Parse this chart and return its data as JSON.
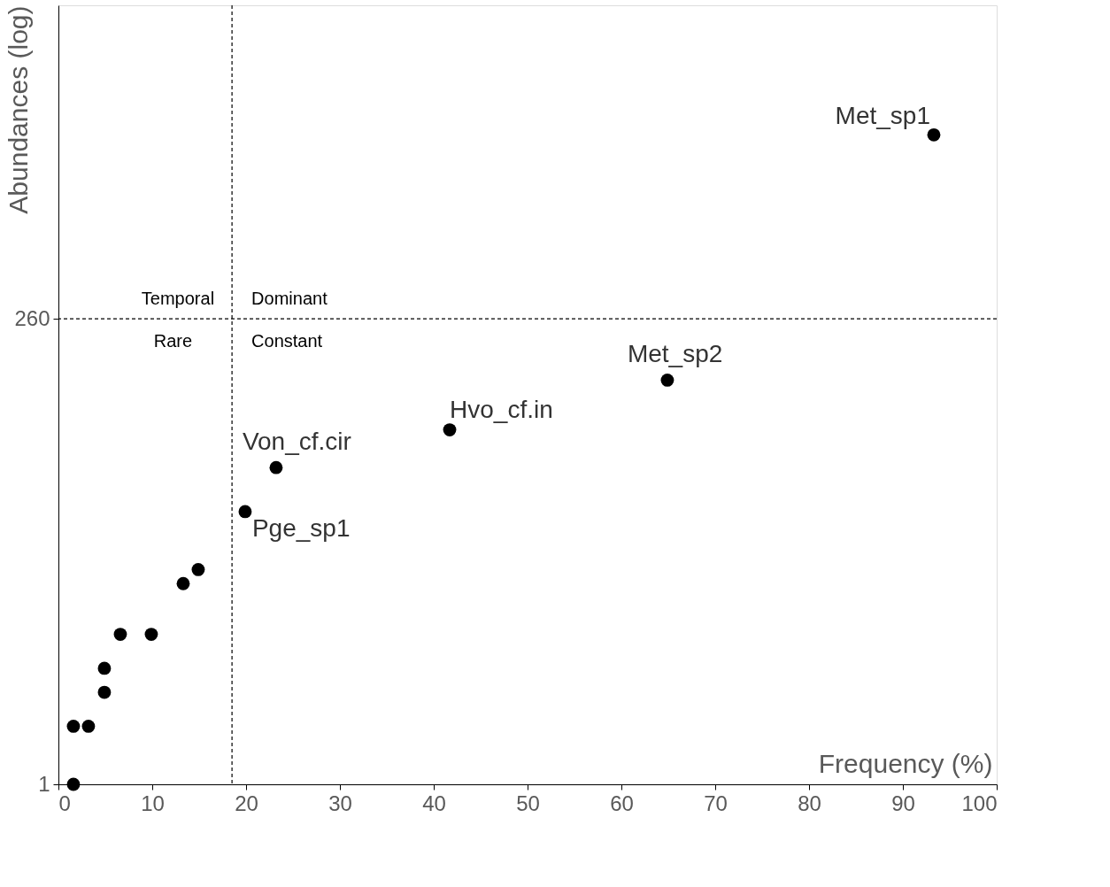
{
  "chart_data": {
    "type": "scatter",
    "xlabel": "Frequency (%)",
    "ylabel": "Abundances (log)",
    "x": [
      93.3,
      64.9,
      41.7,
      23.2,
      19.9,
      14.9,
      13.3,
      9.9,
      6.6,
      4.9,
      4.9,
      1.6,
      3.2,
      1.6
    ],
    "series": [
      {
        "color": "#000000",
        "values": [
          2340,
          125,
          69,
          44,
          26,
          13,
          11,
          6,
          6,
          4,
          3,
          2,
          2,
          1
        ]
      }
    ],
    "xlim": [
      0,
      100
    ],
    "xticks": [
      0,
      10,
      20,
      30,
      40,
      50,
      60,
      70,
      80,
      90,
      100
    ],
    "ylim": [
      1,
      11000
    ],
    "yticks": [
      1,
      260
    ],
    "log": "y",
    "grid": false,
    "marker": "circle",
    "ref_lines": [
      {
        "axis": "x",
        "value": 18.5,
        "line_style": "dashed",
        "color": "#000000"
      },
      {
        "axis": "y",
        "value": 260,
        "line_style": "dashed",
        "color": "#000000"
      }
    ],
    "annotations": [
      {
        "text": "Met_sp1",
        "x": 93.3,
        "y": 2340
      },
      {
        "text": "Met_sp2",
        "x": 64.9,
        "y": 125
      },
      {
        "text": "Hvo_cf.in",
        "x": 41.7,
        "y": 69
      },
      {
        "text": "Von_cf.cir",
        "x": 23.2,
        "y": 44
      },
      {
        "text": "Pge_sp1",
        "x": 19.9,
        "y": 26
      },
      "Temporal",
      "Dominant",
      "Rare",
      "Constant"
    ]
  }
}
